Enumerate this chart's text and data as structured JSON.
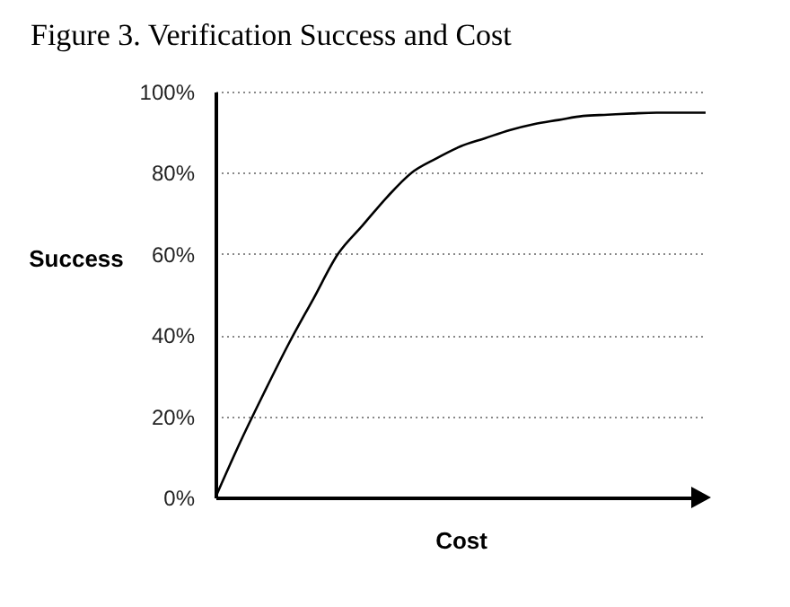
{
  "chart_data": {
    "type": "line",
    "title": "Figure 3. Verification Success and Cost",
    "xlabel": "Cost",
    "ylabel": "Success",
    "categories": [
      null,
      null,
      null,
      null,
      null,
      null,
      null,
      null,
      null,
      null,
      null,
      null,
      null,
      null,
      null,
      null,
      null,
      null,
      null,
      null,
      null
    ],
    "series": [
      {
        "color": "#000000",
        "values": [
          0,
          13.5,
          26,
          38,
          49,
          60,
          67,
          74,
          80,
          83.5,
          86.5,
          88.5,
          90.5,
          92,
          93,
          94,
          94.3,
          94.6,
          94.8,
          94.8,
          94.8
        ]
      }
    ],
    "ylim": [
      0,
      100
    ],
    "yticks": [
      {
        "value": 0,
        "label": "0%"
      },
      {
        "value": 20,
        "label": "20%"
      },
      {
        "value": 40,
        "label": "40%"
      },
      {
        "value": 60,
        "label": "60%"
      },
      {
        "value": 80,
        "label": "80%"
      },
      {
        "value": 100,
        "label": "100%"
      }
    ],
    "grid": "y",
    "tick_labels": "y",
    "marker": "none",
    "line_style": "solid"
  }
}
